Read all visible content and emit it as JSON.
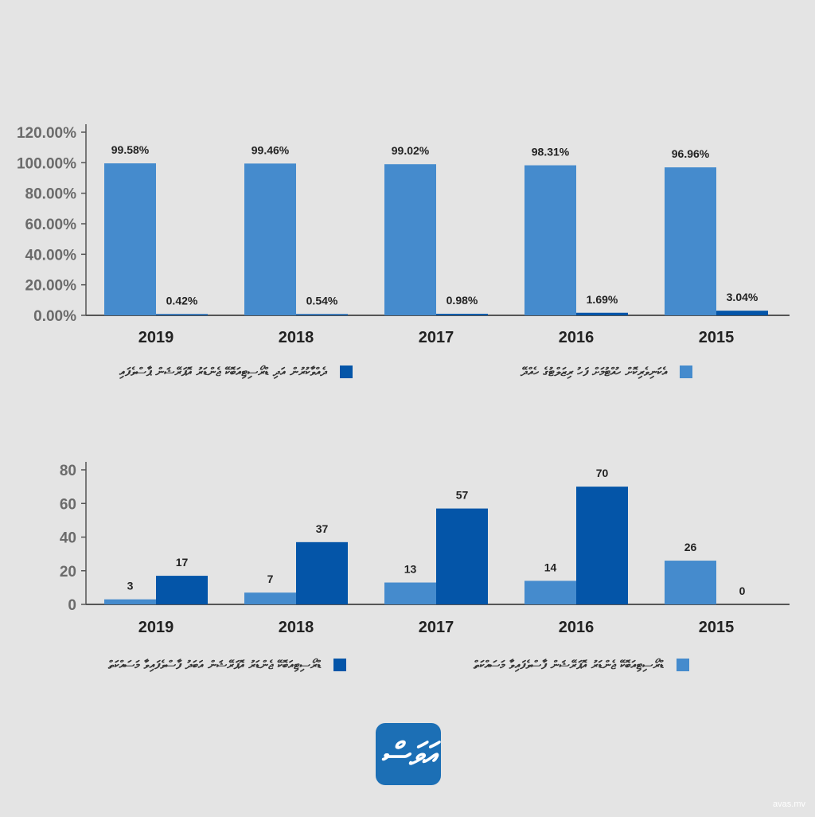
{
  "colors": {
    "light_blue": "#458bcd",
    "dark_blue": "#0455a8",
    "axis": "#555555",
    "logo_bg": "#1c6fb5"
  },
  "chart_data": [
    {
      "type": "bar",
      "categories": [
        "2019",
        "2018",
        "2017",
        "2016",
        "2015"
      ],
      "ylim": [
        0,
        120
      ],
      "yticks": [
        "120.00%",
        "100.00%",
        "80.00%",
        "60.00%",
        "40.00%",
        "20.00%",
        "0.00%"
      ],
      "series": [
        {
          "name": "އެކަނިވެރިކޮށް ހުއްޓުމަށް ފަހު ރިޒަލްޓުގެ ހެއްދޭ",
          "color": "#458bcd",
          "values": [
            99.58,
            99.46,
            99.02,
            98.31,
            96.96
          ],
          "labels": [
            "99.58%",
            "99.46%",
            "99.02%",
            "98.31%",
            "96.96%"
          ]
        },
        {
          "name": "ދެއްވާކުރުން އަދި ޑްރޯސިޓިއަބޮކޭ ޖެންޑަރު އޮޕަރޭޝަން ޕާސްވެފައި",
          "color": "#0455a8",
          "values": [
            0.42,
            0.54,
            0.98,
            1.69,
            3.04
          ],
          "labels": [
            "0.42%",
            "0.54%",
            "0.98%",
            "1.69%",
            "3.04%"
          ]
        }
      ]
    },
    {
      "type": "bar",
      "categories": [
        "2019",
        "2018",
        "2017",
        "2016",
        "2015"
      ],
      "ylim": [
        0,
        80
      ],
      "yticks": [
        "80",
        "60",
        "40",
        "20",
        "0"
      ],
      "series": [
        {
          "name": "ޑްރޯސިޓިއަބޮކޭ ޖެންޑަރު އޮޕަރޭޝަން ފާސްވެފައިވާ މަސައްކަތް",
          "color": "#458bcd",
          "values": [
            3,
            7,
            13,
            14,
            26
          ],
          "labels": [
            "3",
            "7",
            "13",
            "14",
            "26"
          ]
        },
        {
          "name": "ޑްރޯސިޓިއަބޮކޭ ޖެންޑަރު އޮޕަރޭޝަން އަބަދު ފާސްވެފައިވާ މަސައްކަތް",
          "color": "#0455a8",
          "values": [
            17,
            37,
            57,
            70,
            0
          ],
          "labels": [
            "17",
            "37",
            "57",
            "70",
            "0"
          ]
        }
      ]
    }
  ],
  "watermark": "avas.mv",
  "logo": {
    "text": "އަވަސް"
  }
}
